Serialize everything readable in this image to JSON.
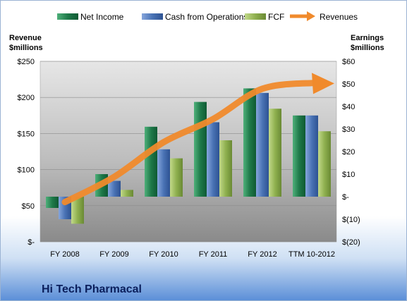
{
  "company": "Hi Tech Pharmacal",
  "chart_data": {
    "type": "bar",
    "categories": [
      "FY 2008",
      "FY 2009",
      "FY 2010",
      "FY 2011",
      "FY 2012",
      "TTM 10-2012"
    ],
    "series": [
      {
        "name": "Net Income",
        "axis": "right",
        "values": [
          -5,
          10,
          31,
          42,
          48,
          36
        ],
        "color": "#1f7a4a"
      },
      {
        "name": "Cash from Operations",
        "axis": "right",
        "values": [
          -10,
          7,
          21,
          33,
          46,
          36
        ],
        "color": "#4a73b5"
      },
      {
        "name": "FCF",
        "axis": "right",
        "values": [
          -12,
          3,
          17,
          25,
          39,
          29
        ],
        "color": "#8fb04f"
      },
      {
        "name": "Revenues",
        "axis": "left",
        "type": "line",
        "values": [
          55,
          90,
          138,
          170,
          212,
          232
        ],
        "color": "#f08a2c"
      }
    ],
    "left_axis": {
      "title_line1": "Revenue",
      "title_line2": "$millions",
      "ylim": [
        0,
        250
      ],
      "tick_labels": [
        "$250",
        "$200",
        "$150",
        "$100",
        "$50",
        "$-"
      ],
      "tick_values": [
        250,
        200,
        150,
        100,
        50,
        0
      ]
    },
    "right_axis": {
      "title_line1": "Earnings",
      "title_line2": "$millions",
      "ylim": [
        -20,
        60
      ],
      "tick_labels": [
        "$60",
        "$50",
        "$40",
        "$30",
        "$20",
        "$10",
        "$-",
        "$(10)",
        "$(20)"
      ],
      "tick_values": [
        60,
        50,
        40,
        30,
        20,
        10,
        0,
        -10,
        -20
      ]
    },
    "legend_position": "top",
    "grid": true
  }
}
